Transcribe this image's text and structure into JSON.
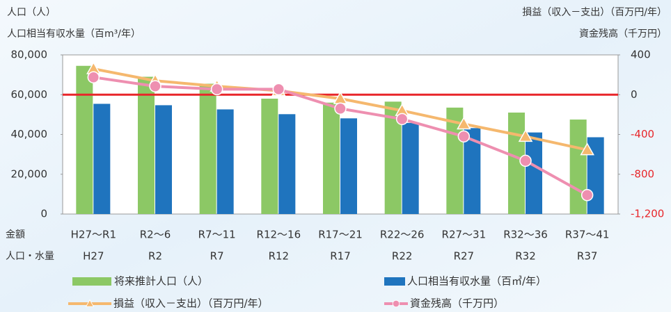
{
  "chart_data": {
    "type": "combo",
    "y_axis_titles": [
      "人口（人）",
      "人口相当有収水量（百m³/年）"
    ],
    "y2_axis_titles": [
      "損益（収入－支出）（百万円/年）",
      "資金残高（千万円）"
    ],
    "row_labels": [
      "金額",
      "人口・水量"
    ],
    "categories": [
      "H27～R1",
      "R2～6",
      "R7～11",
      "R12～16",
      "R17～21",
      "R22～26",
      "R27～31",
      "R32～36",
      "R37～41"
    ],
    "year_labels": [
      "H27",
      "R2",
      "R7",
      "R12",
      "R17",
      "R22",
      "R27",
      "R32",
      "R37"
    ],
    "series": [
      {
        "name": "将来推計人口（人）",
        "type": "bar",
        "color": "#8cc865",
        "values": [
          74500,
          69000,
          65500,
          58000,
          56000,
          56500,
          53500,
          51000,
          47500
        ]
      },
      {
        "name": "人口相当有収水量（百㎥/年）",
        "type": "bar",
        "color": "#1f74be",
        "values": [
          55400,
          54700,
          52600,
          50200,
          48100,
          45800,
          43200,
          41000,
          38600
        ]
      },
      {
        "name": "損益（収入－支出）（百万円/年）",
        "type": "line",
        "axis": "y2",
        "marker": "triangle",
        "color": "#f5b86e",
        "values": [
          260,
          140,
          85,
          40,
          -40,
          -160,
          -295,
          -420,
          -555
        ]
      },
      {
        "name": "資金残高（千万円）",
        "type": "line",
        "axis": "y2",
        "marker": "circle",
        "color": "#ee8fb0",
        "values": [
          175,
          85,
          55,
          55,
          -140,
          -245,
          -420,
          -665,
          -1010
        ]
      }
    ],
    "ylim": [
      0,
      80000
    ],
    "yticks": [
      {
        "value": 80000,
        "label": "80,000"
      },
      {
        "value": 60000,
        "label": "60,000"
      },
      {
        "value": 40000,
        "label": "40,000"
      },
      {
        "value": 20000,
        "label": "20,000"
      },
      0
    ],
    "y2lim": [
      -1200,
      400
    ],
    "y2ticks": [
      400,
      0,
      -400,
      -800,
      {
        "value": -1200,
        "label": "-1,200"
      }
    ],
    "negative_tick_color": "#e8262a",
    "reference_line": {
      "axis": "y2",
      "value": 0,
      "color": "#e8262a"
    }
  }
}
